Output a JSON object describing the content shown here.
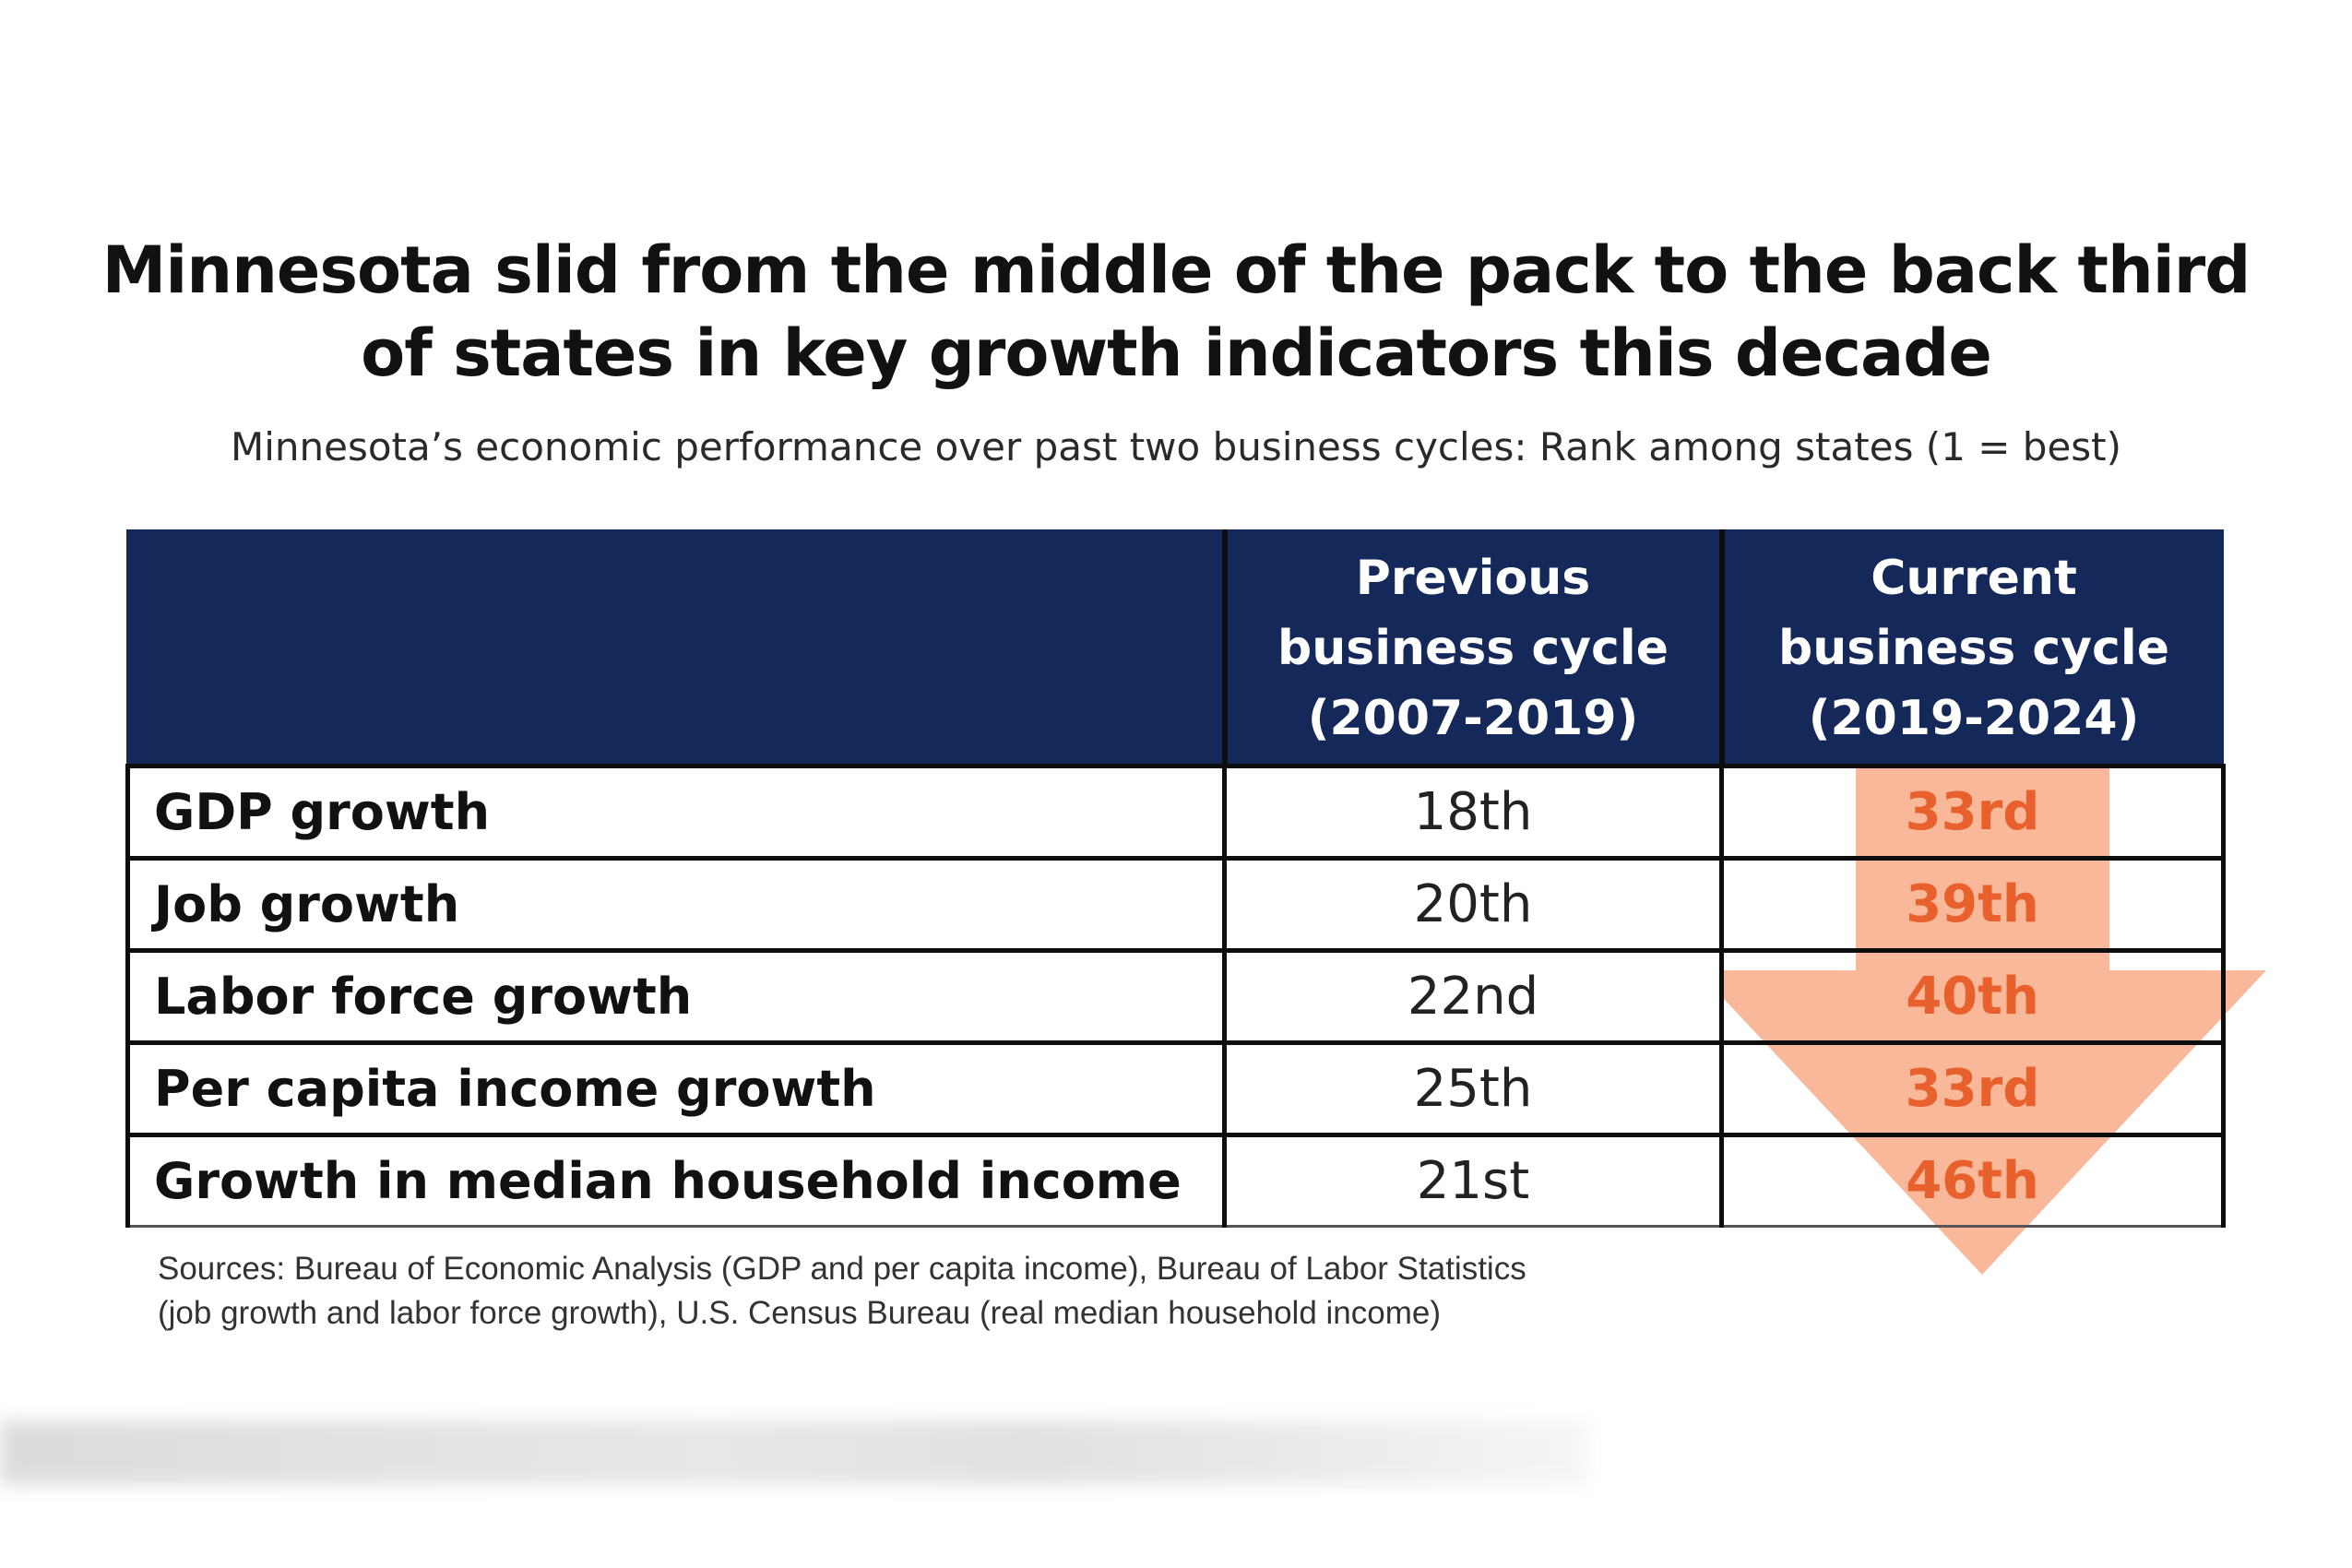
{
  "chart_data": {
    "type": "table",
    "title": "Minnesota slid from the middle of the pack to the back third of states in key growth indicators this decade",
    "subtitle": "Minnesota’s economic performance over past two business cycles: Rank among states (1 = best)",
    "columns": [
      {
        "line1": "Previous",
        "line2": "business cycle",
        "line3": "(2007-2019)"
      },
      {
        "line1": "Current",
        "line2": "business cycle",
        "line3": "(2019-2024)"
      }
    ],
    "rows": [
      {
        "label": "GDP growth",
        "previous": "18th",
        "current": "33rd"
      },
      {
        "label": "Job growth",
        "previous": "20th",
        "current": "39th"
      },
      {
        "label": "Labor force growth",
        "previous": "22nd",
        "current": "40th"
      },
      {
        "label": "Per capita income growth",
        "previous": "25th",
        "current": "33rd"
      },
      {
        "label": "Growth in median household income",
        "previous": "21st",
        "current": "46th"
      }
    ],
    "sources": [
      "Sources: Bureau of Economic Analysis (GDP and per capita income), Bureau of Labor Statistics",
      "(job growth and labor force growth), U.S. Census Bureau (real median household income)"
    ]
  },
  "colors": {
    "header_bg": "#142959",
    "header_text": "#ffffff",
    "current_rank_text": "#e8602c",
    "arrow_fill": "#f9b08f",
    "border": "#0d0d0d"
  },
  "icons": {
    "decline_arrow": "down-arrow-icon"
  }
}
